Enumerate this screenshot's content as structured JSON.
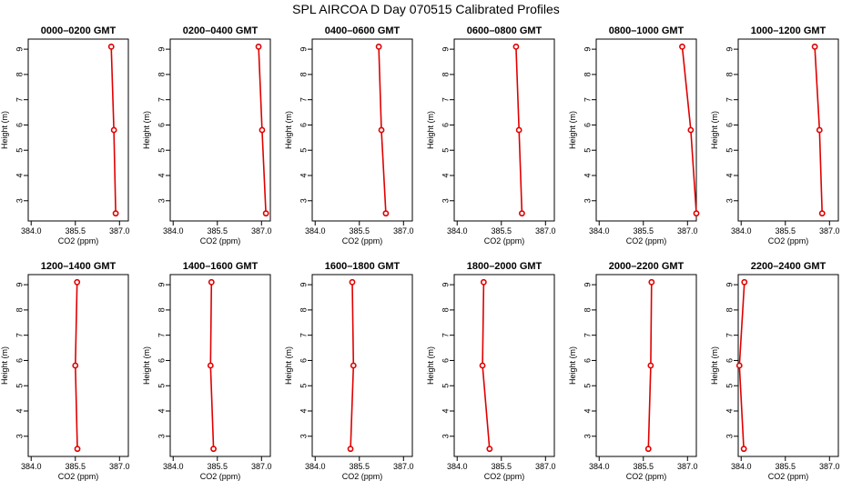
{
  "figure_title": "SPL AIRCOA D  Day 070515  Calibrated Profiles",
  "chart_data": [
    {
      "type": "line",
      "title": "0000–0200 GMT",
      "xlabel": "CO2 (ppm)",
      "ylabel": "Height (m)",
      "xlim": [
        383.9,
        387.3
      ],
      "ylim": [
        2.2,
        9.4
      ],
      "xticks": [
        "384.0",
        "385.5",
        "387.0"
      ],
      "yticks": [
        "3",
        "4",
        "5",
        "6",
        "7",
        "8",
        "9"
      ],
      "x": [
        386.72,
        386.81,
        386.87
      ],
      "y": [
        9.1,
        5.8,
        2.5
      ]
    },
    {
      "type": "line",
      "title": "0200–0400 GMT",
      "xlabel": "CO2 (ppm)",
      "ylabel": "Height (m)",
      "xlim": [
        383.9,
        387.3
      ],
      "ylim": [
        2.2,
        9.4
      ],
      "xticks": [
        "384.0",
        "385.5",
        "387.0"
      ],
      "yticks": [
        "3",
        "4",
        "5",
        "6",
        "7",
        "8",
        "9"
      ],
      "x": [
        386.9,
        387.02,
        387.15
      ],
      "y": [
        9.1,
        5.8,
        2.5
      ]
    },
    {
      "type": "line",
      "title": "0400–0600 GMT",
      "xlabel": "CO2 (ppm)",
      "ylabel": "Height (m)",
      "xlim": [
        383.9,
        387.3
      ],
      "ylim": [
        2.2,
        9.4
      ],
      "xticks": [
        "384.0",
        "385.5",
        "387.0"
      ],
      "yticks": [
        "3",
        "4",
        "5",
        "6",
        "7",
        "8",
        "9"
      ],
      "x": [
        386.16,
        386.25,
        386.4
      ],
      "y": [
        9.1,
        5.8,
        2.5
      ]
    },
    {
      "type": "line",
      "title": "0600–0800 GMT",
      "xlabel": "CO2 (ppm)",
      "ylabel": "Height (m)",
      "xlim": [
        383.9,
        387.3
      ],
      "ylim": [
        2.2,
        9.4
      ],
      "xticks": [
        "384.0",
        "385.5",
        "387.0"
      ],
      "yticks": [
        "3",
        "4",
        "5",
        "6",
        "7",
        "8",
        "9"
      ],
      "x": [
        386.0,
        386.1,
        386.2
      ],
      "y": [
        9.1,
        5.8,
        2.5
      ]
    },
    {
      "type": "line",
      "title": "0800–1000 GMT",
      "xlabel": "CO2 (ppm)",
      "ylabel": "Height (m)",
      "xlim": [
        383.9,
        387.3
      ],
      "ylim": [
        2.2,
        9.4
      ],
      "xticks": [
        "384.0",
        "385.5",
        "387.0"
      ],
      "yticks": [
        "3",
        "4",
        "5",
        "6",
        "7",
        "8",
        "9"
      ],
      "x": [
        386.82,
        387.11,
        387.3
      ],
      "y": [
        9.1,
        5.8,
        2.5
      ]
    },
    {
      "type": "line",
      "title": "1000–1200 GMT",
      "xlabel": "CO2 (ppm)",
      "ylabel": "Height (m)",
      "xlim": [
        383.9,
        387.3
      ],
      "ylim": [
        2.2,
        9.4
      ],
      "xticks": [
        "384.0",
        "385.5",
        "387.0"
      ],
      "yticks": [
        "3",
        "4",
        "5",
        "6",
        "7",
        "8",
        "9"
      ],
      "x": [
        386.5,
        386.66,
        386.75
      ],
      "y": [
        9.1,
        5.8,
        2.5
      ]
    },
    {
      "type": "line",
      "title": "1200–1400 GMT",
      "xlabel": "CO2 (ppm)",
      "ylabel": "Height (m)",
      "xlim": [
        383.9,
        387.3
      ],
      "ylim": [
        2.2,
        9.4
      ],
      "xticks": [
        "384.0",
        "385.5",
        "387.0"
      ],
      "yticks": [
        "3",
        "4",
        "5",
        "6",
        "7",
        "8",
        "9"
      ],
      "x": [
        385.56,
        385.5,
        385.57
      ],
      "y": [
        9.1,
        5.8,
        2.5
      ]
    },
    {
      "type": "line",
      "title": "1400–1600 GMT",
      "xlabel": "CO2 (ppm)",
      "ylabel": "Height (m)",
      "xlim": [
        383.9,
        387.3
      ],
      "ylim": [
        2.2,
        9.4
      ],
      "xticks": [
        "384.0",
        "385.5",
        "387.0"
      ],
      "yticks": [
        "3",
        "4",
        "5",
        "6",
        "7",
        "8",
        "9"
      ],
      "x": [
        385.3,
        385.27,
        385.37
      ],
      "y": [
        9.1,
        5.8,
        2.5
      ]
    },
    {
      "type": "line",
      "title": "1600–1800 GMT",
      "xlabel": "CO2 (ppm)",
      "ylabel": "Height (m)",
      "xlim": [
        383.9,
        387.3
      ],
      "ylim": [
        2.2,
        9.4
      ],
      "xticks": [
        "384.0",
        "385.5",
        "387.0"
      ],
      "yticks": [
        "3",
        "4",
        "5",
        "6",
        "7",
        "8",
        "9"
      ],
      "x": [
        385.26,
        385.3,
        385.2
      ],
      "y": [
        9.1,
        5.8,
        2.5
      ]
    },
    {
      "type": "line",
      "title": "1800–2000 GMT",
      "xlabel": "CO2 (ppm)",
      "ylabel": "Height (m)",
      "xlim": [
        383.9,
        387.3
      ],
      "ylim": [
        2.2,
        9.4
      ],
      "xticks": [
        "384.0",
        "385.5",
        "387.0"
      ],
      "yticks": [
        "3",
        "4",
        "5",
        "6",
        "7",
        "8",
        "9"
      ],
      "x": [
        384.9,
        384.86,
        385.1
      ],
      "y": [
        9.1,
        5.8,
        2.5
      ]
    },
    {
      "type": "line",
      "title": "2000–2200 GMT",
      "xlabel": "CO2 (ppm)",
      "ylabel": "Height (m)",
      "xlim": [
        383.9,
        387.3
      ],
      "ylim": [
        2.2,
        9.4
      ],
      "xticks": [
        "384.0",
        "385.5",
        "387.0"
      ],
      "yticks": [
        "3",
        "4",
        "5",
        "6",
        "7",
        "8",
        "9"
      ],
      "x": [
        385.78,
        385.75,
        385.67
      ],
      "y": [
        9.1,
        5.8,
        2.5
      ]
    },
    {
      "type": "line",
      "title": "2200–2400 GMT",
      "xlabel": "CO2 (ppm)",
      "ylabel": "Height (m)",
      "xlim": [
        383.9,
        387.3
      ],
      "ylim": [
        2.2,
        9.4
      ],
      "xticks": [
        "384.0",
        "385.5",
        "387.0"
      ],
      "yticks": [
        "3",
        "4",
        "5",
        "6",
        "7",
        "8",
        "9"
      ],
      "x": [
        384.11,
        383.94,
        384.09
      ],
      "y": [
        9.1,
        5.8,
        2.5
      ]
    }
  ]
}
